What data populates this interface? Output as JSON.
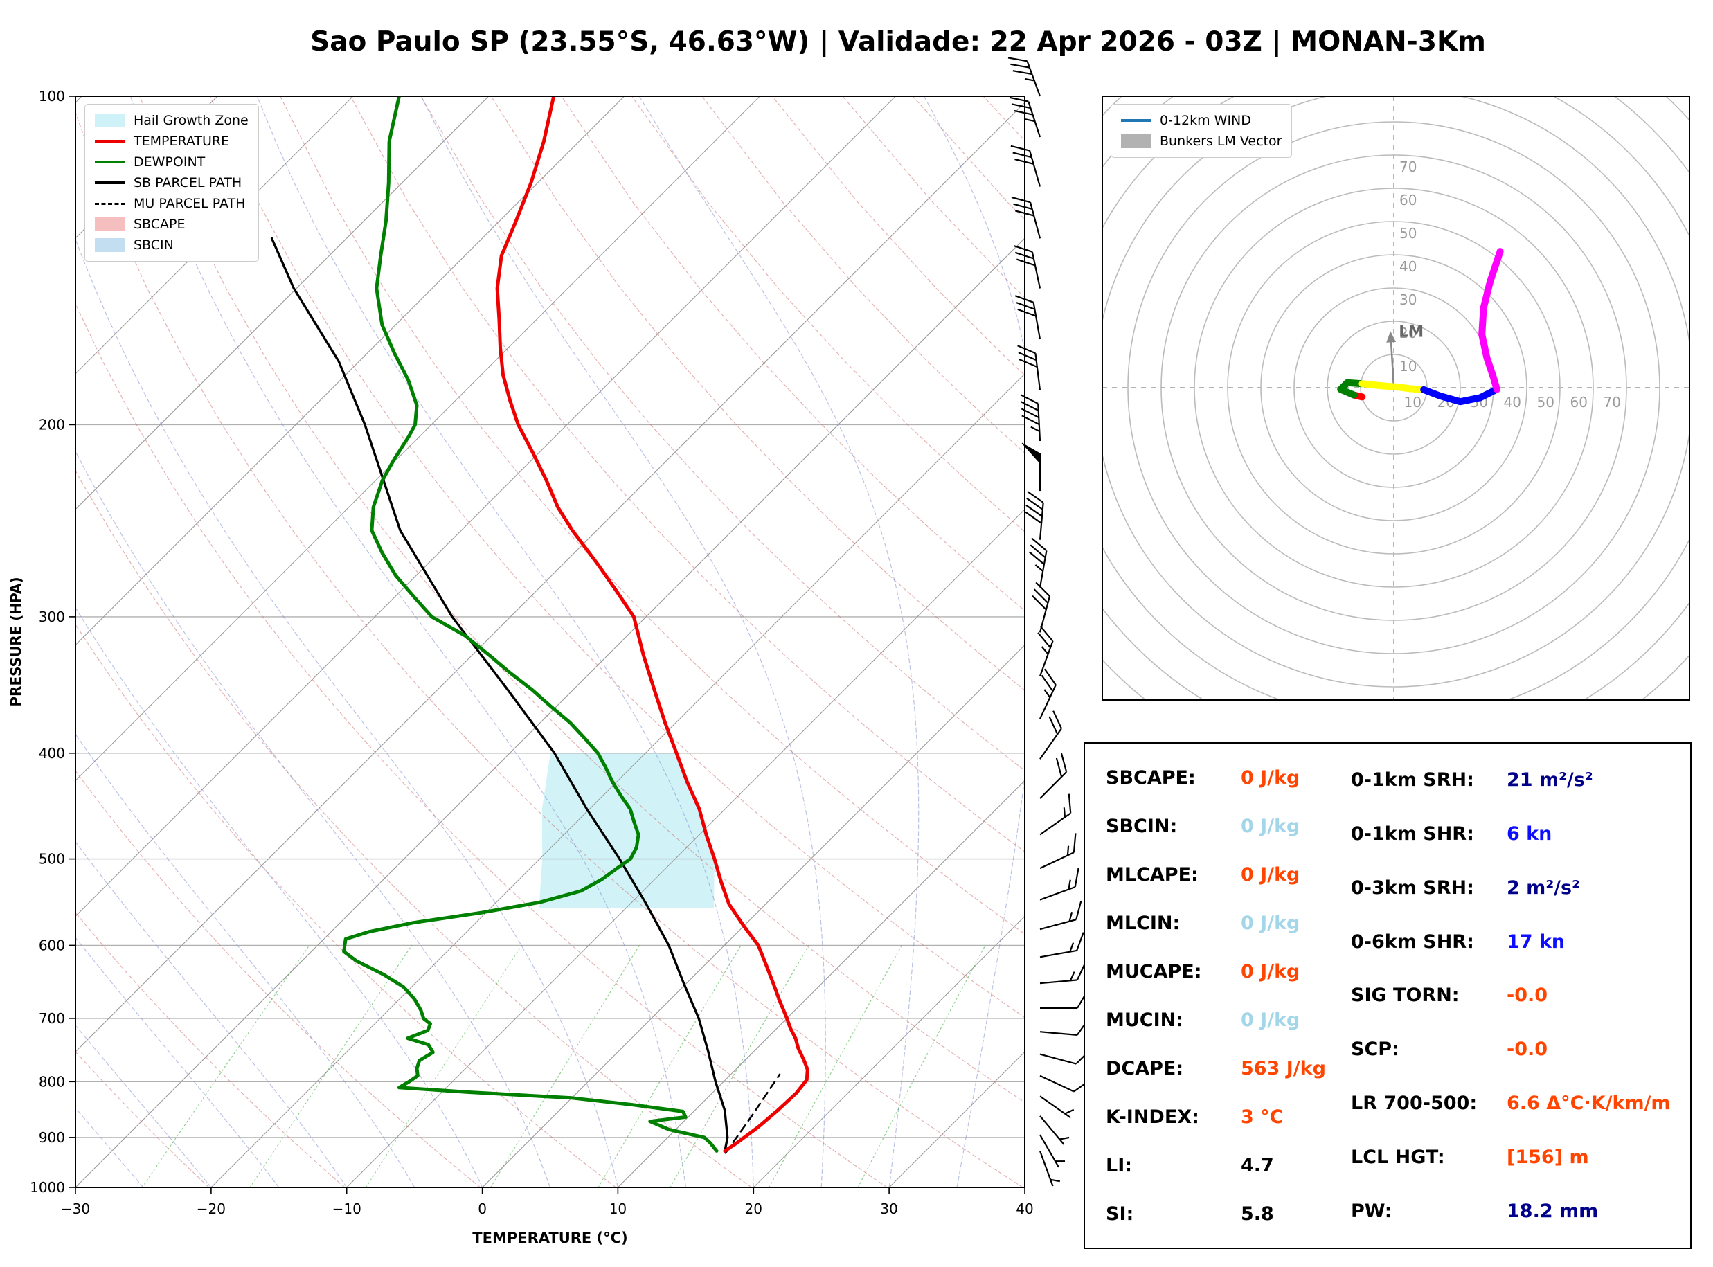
{
  "title": "Sao Paulo SP (23.55°S, 46.63°W) | Validade: 22 Apr 2026 - 03Z | MONAN-3Km",
  "colors": {
    "temperature": "#ee0000",
    "dewpoint": "#008000",
    "parcel": "#000000",
    "hail_zone": "#c9f1f6",
    "sbcape_patch": "#f5b8b8",
    "sbcin_patch": "#bcd9f0",
    "orange": "#ff4500",
    "lightblue": "#a2d6e8",
    "navy": "#00008b",
    "blue": "#0d0dff",
    "black": "#000000",
    "hodo_wind_blue": "#1f77b4",
    "gray": "#aaaaaa"
  },
  "skewt_legend": [
    {
      "label": "Hail Growth Zone",
      "swatch": "patch",
      "color": "#c9f1f6",
      "name": "hail-growth-zone-swatch"
    },
    {
      "label": "TEMPERATURE",
      "swatch": "line",
      "color": "#ee0000",
      "name": "temperature-swatch"
    },
    {
      "label": "DEWPOINT",
      "swatch": "line",
      "color": "#008000",
      "name": "dewpoint-swatch"
    },
    {
      "label": "SB PARCEL PATH",
      "swatch": "line",
      "color": "#000000",
      "name": "sb-parcel-swatch"
    },
    {
      "label": "MU PARCEL PATH",
      "swatch": "dashed",
      "color": "#000000",
      "name": "mu-parcel-swatch"
    },
    {
      "label": "SBCAPE",
      "swatch": "patch",
      "color": "#f5b8b8",
      "name": "sbcape-swatch"
    },
    {
      "label": "SBCIN",
      "swatch": "patch",
      "color": "#bcd9f0",
      "name": "sbcin-swatch"
    }
  ],
  "hodo_legend": [
    {
      "label": "0-12km WIND",
      "swatch": "line",
      "color": "#1f77b4",
      "name": "wind-0-12km-swatch"
    },
    {
      "label": "Bunkers LM Vector",
      "swatch": "patch",
      "color": "#aaaaaa",
      "name": "bunkers-lm-swatch"
    }
  ],
  "indices": {
    "left": [
      {
        "label": "SBCAPE:",
        "value": "0 J/kg",
        "color": "#ff4500"
      },
      {
        "label": "SBCIN:",
        "value": "0 J/kg",
        "color": "#a2d6e8"
      },
      {
        "label": "MLCAPE:",
        "value": "0 J/kg",
        "color": "#ff4500"
      },
      {
        "label": "MLCIN:",
        "value": "0 J/kg",
        "color": "#a2d6e8"
      },
      {
        "label": "MUCAPE:",
        "value": "0 J/kg",
        "color": "#ff4500"
      },
      {
        "label": "MUCIN:",
        "value": "0 J/kg",
        "color": "#a2d6e8"
      },
      {
        "label": "DCAPE:",
        "value": "563 J/kg",
        "color": "#ff4500"
      },
      {
        "label": "K-INDEX:",
        "value": "3 °C",
        "color": "#ff4500"
      },
      {
        "label": "LI:",
        "value": "4.7",
        "color": "#000000"
      },
      {
        "label": "SI:",
        "value": "5.8",
        "color": "#000000"
      }
    ],
    "right": [
      {
        "label": "0-1km SRH:",
        "value": "21 m²/s²",
        "color": "#00008b"
      },
      {
        "label": "0-1km SHR:",
        "value": "6 kn",
        "color": "#0d0dff"
      },
      {
        "label": "0-3km SRH:",
        "value": "2 m²/s²",
        "color": "#00008b"
      },
      {
        "label": "0-6km SHR:",
        "value": "17 kn",
        "color": "#0d0dff"
      },
      {
        "label": "SIG TORN:",
        "value": "-0.0",
        "color": "#ff4500"
      },
      {
        "label": "SCP:",
        "value": "-0.0",
        "color": "#ff4500"
      },
      {
        "label": "LR 700-500:",
        "value": "6.6 Δ°C·K/km/m",
        "color": "#ff4500"
      },
      {
        "label": "LCL HGT:",
        "value": "[156] m",
        "color": "#ff4500"
      },
      {
        "label": "PW:",
        "value": "18.2 mm",
        "color": "#00008b"
      }
    ]
  },
  "chart_data": [
    {
      "type": "skewt",
      "xlabel": "TEMPERATURE (°C)",
      "ylabel": "PRESSURE (HPA)",
      "xlim": [
        -30,
        40
      ],
      "plim": [
        100,
        1000
      ],
      "x_ticks": [
        -30,
        -20,
        -10,
        0,
        10,
        20,
        30,
        40
      ],
      "p_ticks": [
        100,
        200,
        300,
        400,
        500,
        600,
        700,
        800,
        900,
        1000
      ],
      "grid": true,
      "temperature": [
        [
          926,
          15.2
        ],
        [
          910,
          15.5
        ],
        [
          880,
          15.9
        ],
        [
          850,
          16.1
        ],
        [
          820,
          16.2
        ],
        [
          797,
          16.0
        ],
        [
          780,
          15.3
        ],
        [
          764,
          14.3
        ],
        [
          745,
          13.0
        ],
        [
          730,
          12.1
        ],
        [
          715,
          11.0
        ],
        [
          700,
          10.0
        ],
        [
          675,
          8.2
        ],
        [
          650,
          6.4
        ],
        [
          625,
          4.5
        ],
        [
          600,
          2.5
        ],
        [
          575,
          -0.1
        ],
        [
          550,
          -2.7
        ],
        [
          525,
          -4.9
        ],
        [
          500,
          -7.1
        ],
        [
          475,
          -9.5
        ],
        [
          450,
          -11.9
        ],
        [
          425,
          -14.8
        ],
        [
          400,
          -17.7
        ],
        [
          375,
          -20.8
        ],
        [
          350,
          -24.0
        ],
        [
          325,
          -27.4
        ],
        [
          300,
          -30.9
        ],
        [
          285,
          -33.9
        ],
        [
          270,
          -37.1
        ],
        [
          260,
          -39.4
        ],
        [
          250,
          -41.8
        ],
        [
          238,
          -44.6
        ],
        [
          225,
          -47.4
        ],
        [
          212,
          -50.5
        ],
        [
          200,
          -53.6
        ],
        [
          190,
          -56.0
        ],
        [
          180,
          -58.4
        ],
        [
          170,
          -60.6
        ],
        [
          160,
          -62.8
        ],
        [
          150,
          -65.2
        ],
        [
          140,
          -67.3
        ],
        [
          130,
          -68.8
        ],
        [
          120,
          -70.5
        ],
        [
          110,
          -72.6
        ],
        [
          100,
          -75.2
        ]
      ],
      "dewpoint": [
        [
          926,
          14.6
        ],
        [
          910,
          13.5
        ],
        [
          900,
          12.7
        ],
        [
          885,
          9.5
        ],
        [
          870,
          7.5
        ],
        [
          862,
          9.8
        ],
        [
          852,
          9.2
        ],
        [
          840,
          5.0
        ],
        [
          828,
          0.0
        ],
        [
          818,
          -8.0
        ],
        [
          810,
          -13.5
        ],
        [
          800,
          -13.2
        ],
        [
          790,
          -13.0
        ],
        [
          778,
          -13.6
        ],
        [
          765,
          -14.0
        ],
        [
          752,
          -13.6
        ],
        [
          740,
          -14.5
        ],
        [
          730,
          -16.5
        ],
        [
          718,
          -15.6
        ],
        [
          708,
          -15.9
        ],
        [
          700,
          -16.8
        ],
        [
          688,
          -17.6
        ],
        [
          672,
          -18.9
        ],
        [
          655,
          -20.6
        ],
        [
          638,
          -23.0
        ],
        [
          620,
          -26.0
        ],
        [
          608,
          -27.6
        ],
        [
          600,
          -28.0
        ],
        [
          592,
          -28.4
        ],
        [
          583,
          -27.2
        ],
        [
          572,
          -24.6
        ],
        [
          560,
          -20.3
        ],
        [
          548,
          -16.8
        ],
        [
          535,
          -14.6
        ],
        [
          522,
          -13.9
        ],
        [
          510,
          -13.6
        ],
        [
          500,
          -13.3
        ],
        [
          488,
          -13.7
        ],
        [
          475,
          -14.5
        ],
        [
          462,
          -15.8
        ],
        [
          450,
          -17.0
        ],
        [
          438,
          -18.6
        ],
        [
          425,
          -20.3
        ],
        [
          412,
          -21.9
        ],
        [
          400,
          -23.5
        ],
        [
          388,
          -25.5
        ],
        [
          375,
          -27.8
        ],
        [
          362,
          -30.5
        ],
        [
          350,
          -33.0
        ],
        [
          338,
          -35.8
        ],
        [
          325,
          -38.8
        ],
        [
          312,
          -42.0
        ],
        [
          300,
          -45.8
        ],
        [
          288,
          -48.5
        ],
        [
          275,
          -51.5
        ],
        [
          262,
          -54.2
        ],
        [
          250,
          -56.6
        ],
        [
          238,
          -58.2
        ],
        [
          225,
          -59.5
        ],
        [
          215,
          -60.2
        ],
        [
          205,
          -60.8
        ],
        [
          200,
          -61.2
        ],
        [
          192,
          -62.5
        ],
        [
          182,
          -65.0
        ],
        [
          172,
          -68.0
        ],
        [
          162,
          -71.0
        ],
        [
          150,
          -74.1
        ],
        [
          140,
          -76.2
        ],
        [
          130,
          -78.4
        ],
        [
          120,
          -81.0
        ],
        [
          110,
          -84.0
        ],
        [
          100,
          -86.6
        ]
      ],
      "sb_parcel": [
        [
          926,
          15.2
        ],
        [
          900,
          14.4
        ],
        [
          850,
          12.2
        ],
        [
          800,
          9.4
        ],
        [
          750,
          6.6
        ],
        [
          700,
          3.5
        ],
        [
          650,
          -0.2
        ],
        [
          600,
          -4.1
        ],
        [
          550,
          -8.8
        ],
        [
          500,
          -14.1
        ],
        [
          450,
          -20.2
        ],
        [
          400,
          -26.7
        ],
        [
          350,
          -34.8
        ],
        [
          300,
          -44.3
        ],
        [
          250,
          -54.5
        ],
        [
          200,
          -64.9
        ],
        [
          175,
          -71.5
        ],
        [
          150,
          -80.2
        ],
        [
          135,
          -85.5
        ]
      ],
      "mu_parcel": [
        [
          930,
          15.4
        ],
        [
          860,
          14.6
        ],
        [
          788,
          13.6
        ]
      ],
      "hail_zone": [
        [
          400,
          -27.0
        ],
        [
          400,
          -17.7
        ],
        [
          450,
          -12.0
        ],
        [
          500,
          -7.1
        ],
        [
          555,
          -3.5
        ],
        [
          555,
          -16.4
        ],
        [
          500,
          -19.8
        ],
        [
          450,
          -23.5
        ]
      ],
      "winds": [
        [
          926,
          160,
          5
        ],
        [
          895,
          150,
          5
        ],
        [
          860,
          140,
          6
        ],
        [
          825,
          125,
          7
        ],
        [
          790,
          115,
          8
        ],
        [
          755,
          105,
          9
        ],
        [
          720,
          95,
          10
        ],
        [
          685,
          90,
          12
        ],
        [
          650,
          85,
          13
        ],
        [
          615,
          80,
          15
        ],
        [
          580,
          75,
          15
        ],
        [
          545,
          70,
          15
        ],
        [
          510,
          65,
          15
        ],
        [
          475,
          55,
          17
        ],
        [
          440,
          45,
          18
        ],
        [
          405,
          35,
          20
        ],
        [
          372,
          25,
          23
        ],
        [
          340,
          20,
          27
        ],
        [
          310,
          15,
          30
        ],
        [
          282,
          10,
          35
        ],
        [
          255,
          5,
          42
        ],
        [
          230,
          0,
          50
        ],
        [
          207,
          357,
          45
        ],
        [
          186,
          353,
          32
        ],
        [
          167,
          350,
          30
        ],
        [
          150,
          348,
          30
        ],
        [
          135,
          345,
          32
        ],
        [
          121,
          344,
          30
        ],
        [
          109,
          342,
          33
        ],
        [
          100,
          340,
          35
        ]
      ]
    },
    {
      "type": "hodograph",
      "ring_interval": 10,
      "ring_max": 120,
      "ring_labels": [
        10,
        20,
        30,
        40,
        50,
        60,
        70
      ],
      "lm_label": "LM",
      "lm_vector": [
        -1,
        17
      ],
      "segments": [
        {
          "color": "#ff0000",
          "points": [
            [
              -9.5,
              -2.8
            ],
            [
              -12,
              -2.2
            ]
          ]
        },
        {
          "color": "#008000",
          "points": [
            [
              -12,
              -2.2
            ],
            [
              -16,
              -0.5
            ],
            [
              -14,
              1.5
            ],
            [
              -9.5,
              1.2
            ]
          ]
        },
        {
          "color": "#ffff00",
          "points": [
            [
              -9.5,
              1.2
            ],
            [
              -4,
              0.6
            ],
            [
              1,
              0.2
            ],
            [
              5,
              -0.3
            ],
            [
              9,
              -0.6
            ]
          ]
        },
        {
          "color": "#0000ff",
          "points": [
            [
              9,
              -0.6
            ],
            [
              14,
              -2.5
            ],
            [
              20,
              -4.2
            ],
            [
              26,
              -3
            ],
            [
              31,
              -0.5
            ]
          ]
        },
        {
          "color": "#ff00ff",
          "points": [
            [
              31,
              -0.5
            ],
            [
              30,
              3
            ],
            [
              28,
              9
            ],
            [
              26.5,
              16
            ],
            [
              27,
              24
            ],
            [
              29,
              32
            ],
            [
              32,
              41
            ]
          ]
        }
      ]
    }
  ]
}
